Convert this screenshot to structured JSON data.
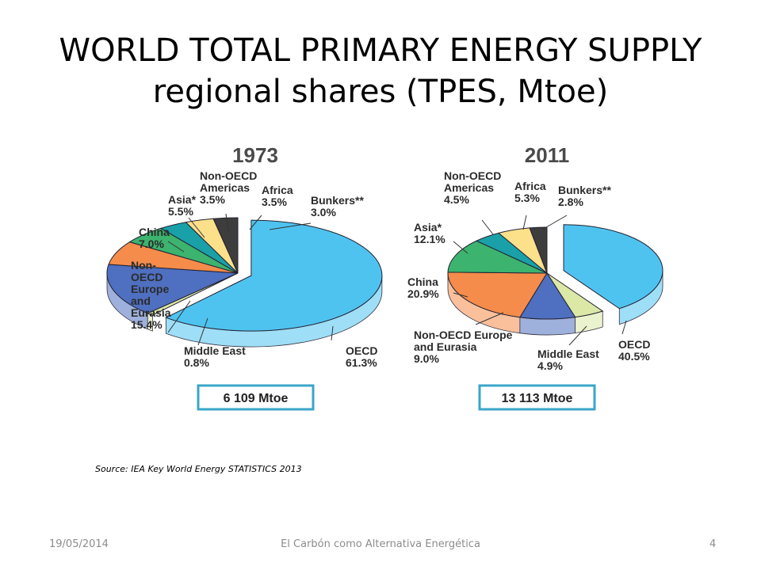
{
  "slide": {
    "title_line1": "WORLD TOTAL PRIMARY ENERGY SUPPLY",
    "title_line2": "regional shares (TPES, Mtoe)",
    "source": "Source: IEA Key World Energy STATISTICS 2013",
    "footer_date": "19/05/2014",
    "footer_title": "El Carbón como Alternativa Energética",
    "page_number": "4"
  },
  "chart_data": [
    {
      "type": "pie",
      "title": "1973",
      "total": "6 109 Mtoe",
      "categories": [
        "OECD",
        "Middle East",
        "Non-OECD Europe and Eurasia",
        "China",
        "Asia*",
        "Non-OECD Americas",
        "Africa",
        "Bunkers**"
      ],
      "values": [
        61.3,
        0.8,
        15.4,
        7.0,
        5.5,
        3.5,
        3.5,
        3.0
      ],
      "labels": [
        {
          "lines": [
            "OECD",
            "61.3%"
          ]
        },
        {
          "lines": [
            "Middle East",
            "0.8%"
          ]
        },
        {
          "lines": [
            "Non-",
            "OECD",
            "Europe",
            "and",
            "Eurasia",
            "15.4%"
          ]
        },
        {
          "lines": [
            "China",
            "7.0%"
          ]
        },
        {
          "lines": [
            "Asia*",
            "5.5%"
          ]
        },
        {
          "lines": [
            "Non-OECD",
            "Americas",
            "3.5%"
          ]
        },
        {
          "lines": [
            "Africa",
            "3.5%"
          ]
        },
        {
          "lines": [
            "Bunkers**",
            "3.0%"
          ]
        }
      ]
    },
    {
      "type": "pie",
      "title": "2011",
      "total": "13 113 Mtoe",
      "categories": [
        "OECD",
        "Middle East",
        "Non-OECD Europe and Eurasia",
        "China",
        "Asia*",
        "Non-OECD Americas",
        "Africa",
        "Bunkers**"
      ],
      "values": [
        40.5,
        4.9,
        9.0,
        20.9,
        12.1,
        4.5,
        5.3,
        2.8
      ],
      "labels": [
        {
          "lines": [
            "OECD",
            "40.5%"
          ]
        },
        {
          "lines": [
            "Middle East",
            "4.9%"
          ]
        },
        {
          "lines": [
            "Non-OECD Europe",
            "and Eurasia",
            "9.0%"
          ]
        },
        {
          "lines": [
            "China",
            "20.9%"
          ]
        },
        {
          "lines": [
            "Asia*",
            "12.1%"
          ]
        },
        {
          "lines": [
            "Non-OECD",
            "Americas",
            "4.5%"
          ]
        },
        {
          "lines": [
            "Africa",
            "5.3%"
          ]
        },
        {
          "lines": [
            "Bunkers**",
            "2.8%"
          ]
        }
      ]
    }
  ],
  "colors": {
    "OECD": "#4fc3f0",
    "Middle East": "#dbe8a6",
    "Non-OECD Europe and Eurasia": "#4f6fc0",
    "China": "#f58c4b",
    "Asia*": "#3cb36e",
    "Non-OECD Americas": "#1aa0a8",
    "Africa": "#fce08a",
    "Bunkers**": "#3d3d3d",
    "total_box_border": "#3aa6c8"
  }
}
